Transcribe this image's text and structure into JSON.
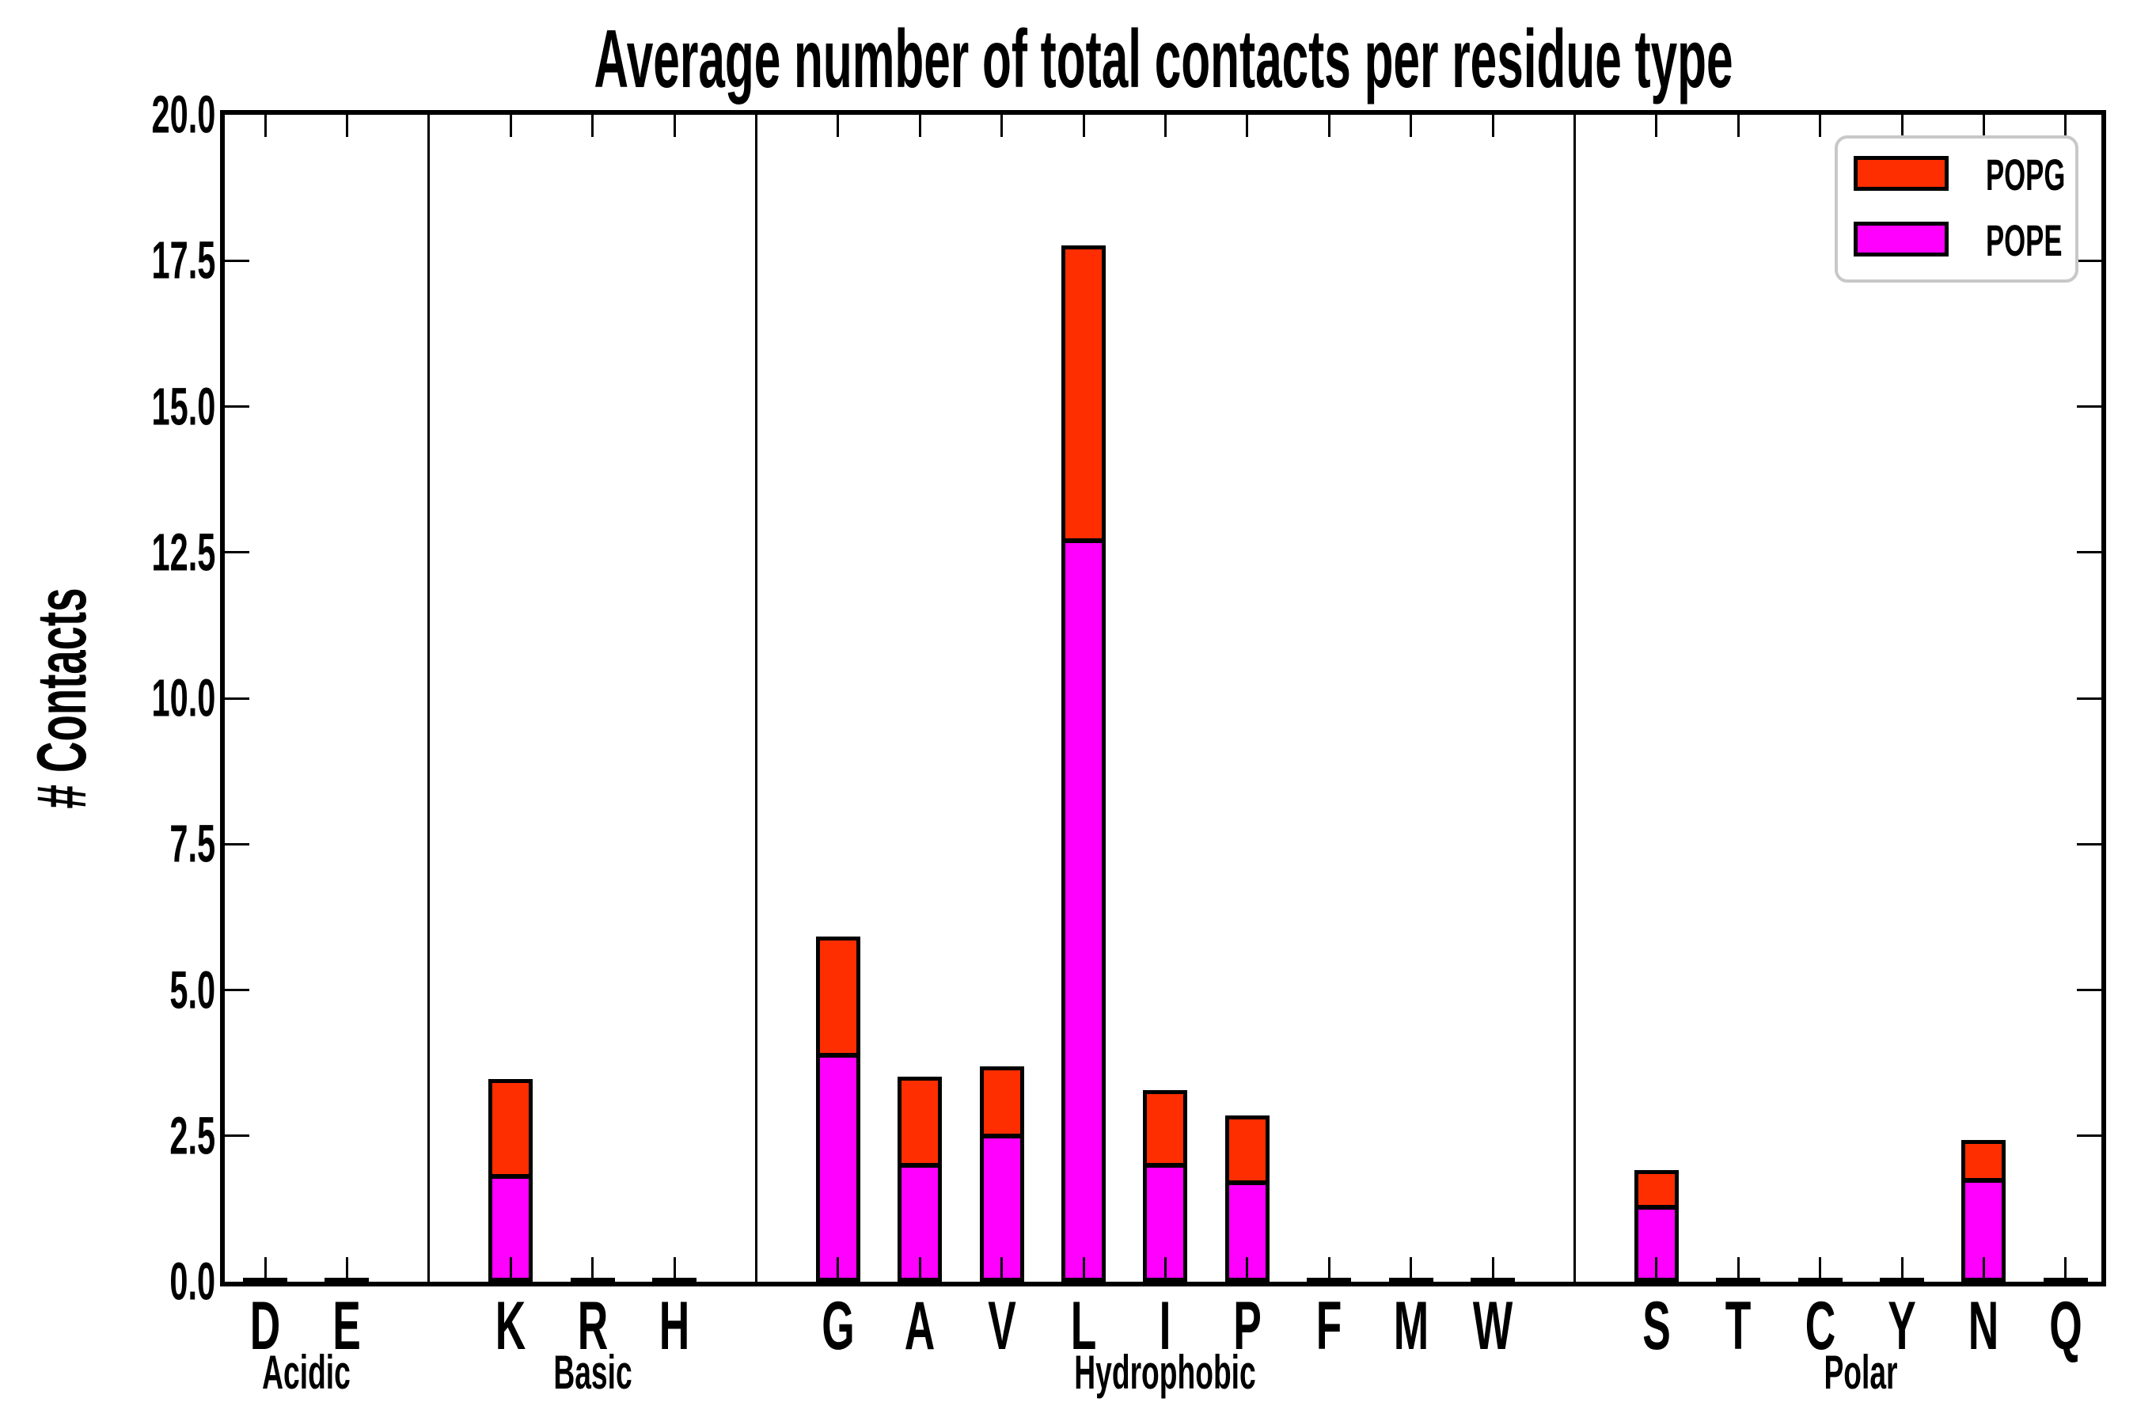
{
  "title": "Average number of total contacts per residue type",
  "ylabel": "# Contacts",
  "legend": {
    "items": [
      {
        "label": "POPG",
        "color": "#ff2e00"
      },
      {
        "label": "POPE",
        "color": "#ff00ff"
      }
    ]
  },
  "colors": {
    "popg_red": "#ff2e00",
    "pope_magenta": "#ff00ff",
    "bar_edge": "#000000",
    "legend_border": "#c8c8c8"
  },
  "chart_data": {
    "type": "bar",
    "stacked": true,
    "title": "Average number of total contacts per residue type",
    "ylabel": "# Contacts",
    "xlabel": "",
    "ylim": [
      0,
      20
    ],
    "ytick_step": 2.5,
    "ytick_labels": [
      "0.0",
      "2.5",
      "5.0",
      "7.5",
      "10.0",
      "12.5",
      "15.0",
      "17.5",
      "20.0"
    ],
    "grid": false,
    "legend_position": "upper right",
    "categories": [
      "D",
      "E",
      "K",
      "R",
      "H",
      "G",
      "A",
      "V",
      "L",
      "I",
      "P",
      "F",
      "M",
      "W",
      "S",
      "T",
      "C",
      "Y",
      "N",
      "Q"
    ],
    "groups": [
      {
        "label": "Acidic",
        "residues": [
          "D",
          "E"
        ]
      },
      {
        "label": "Basic",
        "residues": [
          "K",
          "R",
          "H"
        ]
      },
      {
        "label": "Hydrophobic",
        "residues": [
          "G",
          "A",
          "V",
          "L",
          "I",
          "P",
          "F",
          "M",
          "W"
        ]
      },
      {
        "label": "Polar",
        "residues": [
          "S",
          "T",
          "C",
          "Y",
          "N",
          "Q"
        ]
      }
    ],
    "series": [
      {
        "name": "POPE",
        "color": "#ff00ff",
        "values": [
          0,
          0,
          1.8,
          0,
          0,
          3.88,
          2.0,
          2.5,
          12.7,
          2.0,
          1.7,
          0,
          0,
          0,
          1.27,
          0,
          0,
          0,
          1.74,
          0
        ]
      },
      {
        "name": "POPG",
        "color": "#ff2e00",
        "values": [
          0,
          0,
          1.67,
          0,
          0,
          2.04,
          1.52,
          1.19,
          5.06,
          1.29,
          1.15,
          0,
          0,
          0,
          0.65,
          0,
          0,
          0,
          0.69,
          0
        ]
      }
    ]
  }
}
